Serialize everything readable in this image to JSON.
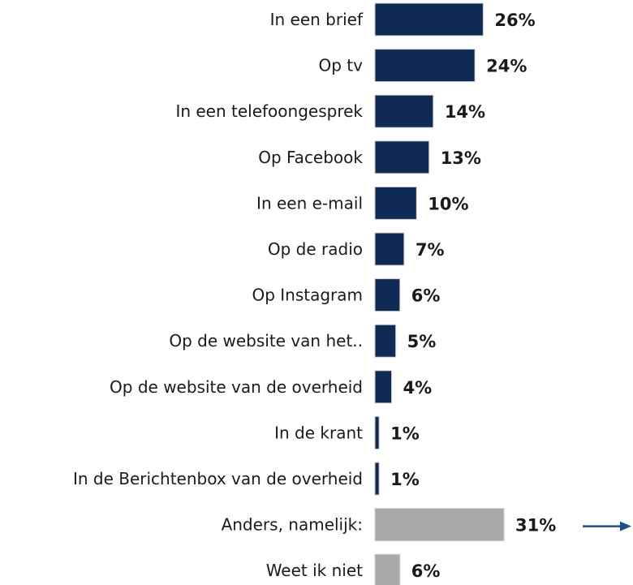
{
  "chart_data": {
    "type": "bar",
    "orientation": "horizontal",
    "categories": [
      "In een brief",
      "Op tv",
      "In een telefoongesprek",
      "Op Facebook",
      "In een e-mail",
      "Op de radio",
      "Op Instagram",
      "Op de website van het..",
      "Op de website van de overheid",
      "In de krant",
      "In de Berichtenbox van de overheid",
      "Anders, namelijk:",
      "Weet ik niet"
    ],
    "values": [
      26,
      24,
      14,
      13,
      10,
      7,
      6,
      5,
      4,
      1,
      1,
      31,
      6
    ],
    "value_labels": [
      "26%",
      "24%",
      "14%",
      "13%",
      "10%",
      "7%",
      "6%",
      "5%",
      "4%",
      "1%",
      "1%",
      "31%",
      "6%"
    ],
    "bar_colors": [
      "#0f2a54",
      "#0f2a54",
      "#0f2a54",
      "#0f2a54",
      "#0f2a54",
      "#0f2a54",
      "#0f2a54",
      "#0f2a54",
      "#0f2a54",
      "#0f2a54",
      "#0f2a54",
      "#a9a9a9",
      "#a9a9a9"
    ],
    "xlim": [
      0,
      31
    ],
    "grid": false,
    "legend": "none",
    "arrow_color": "#1f4e8c"
  }
}
